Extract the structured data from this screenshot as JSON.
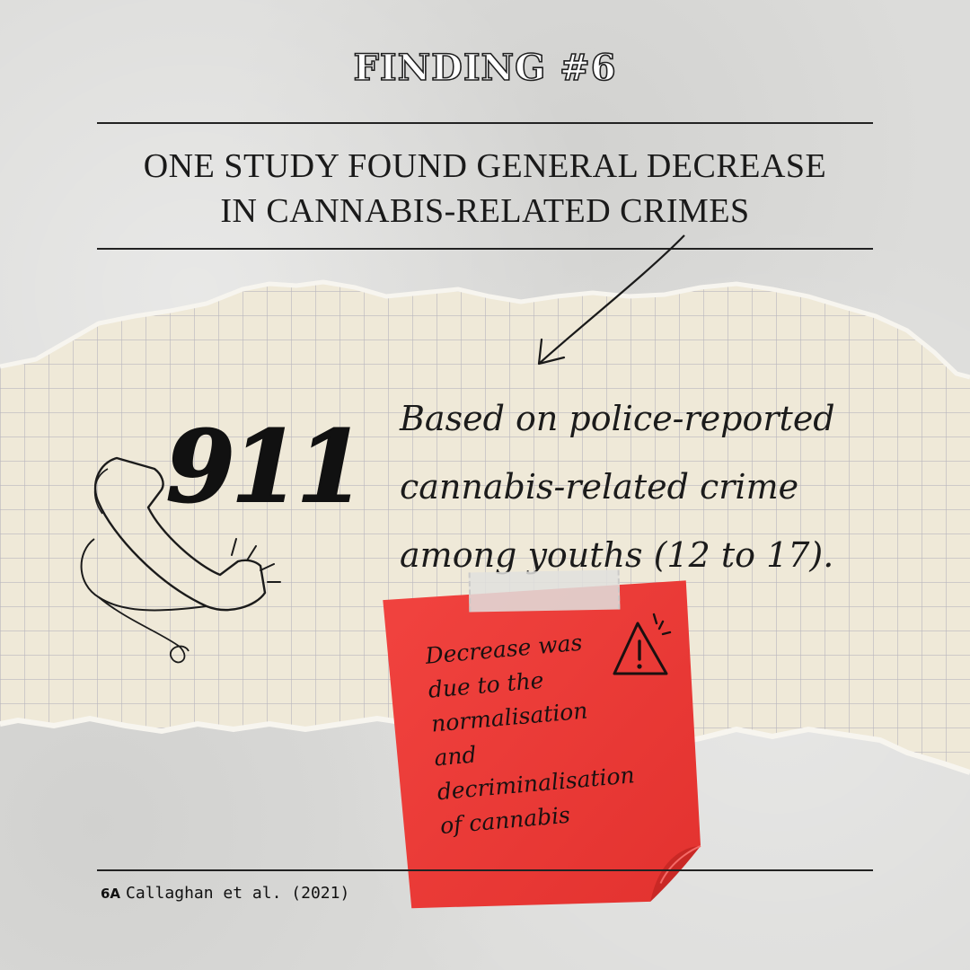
{
  "header": {
    "title": "FINDING #6",
    "subtitle_line1": "ONE STUDY FOUND GENERAL DECREASE",
    "subtitle_line2": "IN CANNABIS-RELATED CRIMES"
  },
  "main": {
    "emergency_number": "911",
    "description_lines": [
      "Based on police-reported",
      "cannabis-related crime",
      "among youths (12 to 17)."
    ]
  },
  "sticky_note": {
    "lines": [
      "Decrease was",
      "due to the",
      "normalisation",
      "and",
      "decriminalisation",
      "of cannabis"
    ]
  },
  "footer": {
    "reference_tag": "6A",
    "citation": "Callaghan et al. (2021)"
  },
  "colors": {
    "background": "#dcdcda",
    "paper": "#efe9d8",
    "grid": "#b9b6bd",
    "note": "#ee3b37",
    "ink": "#1b1b1b"
  }
}
